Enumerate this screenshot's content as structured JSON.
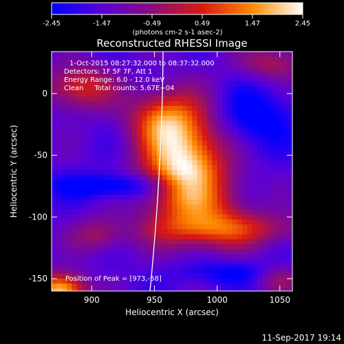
{
  "chart_data": {
    "type": "heatmap",
    "title": "Reconstructed RHESSI Image",
    "xlabel": "Heliocentric X (arcsec)",
    "ylabel": "Heliocentric Y (arcsec)",
    "xlim": [
      868,
      1060
    ],
    "ylim": [
      -160,
      34
    ],
    "x_ticks": [
      900,
      950,
      1000,
      1050
    ],
    "y_ticks": [
      0,
      -50,
      -100,
      -150
    ],
    "colorbar": {
      "min": -2.45,
      "max": 2.45,
      "ticks": [
        "-2.45",
        "-1.47",
        "-0.49",
        "0.49",
        "1.47",
        "2.45"
      ],
      "units_text": "(photons cm-2 s-1 asec-2)",
      "colors": [
        "#0000ff",
        "#5a00d8",
        "#8a0d7a",
        "#d91a10",
        "#ff8a00",
        "#ffffff"
      ]
    },
    "annotations": [
      "1-Oct-2015 08:27:32.000 to 08:37:32.000",
      "Detectors: 1F 5F 7F, Att 1",
      "Energy Range: 6.0 - 12.0 keV",
      "Clean     Total counts: 5.67E+04",
      "Position of Peak = [973,-58]"
    ],
    "peak": {
      "x": 973,
      "y": -58
    },
    "grid": false,
    "footer": "11-Sep-2017 19:14"
  }
}
